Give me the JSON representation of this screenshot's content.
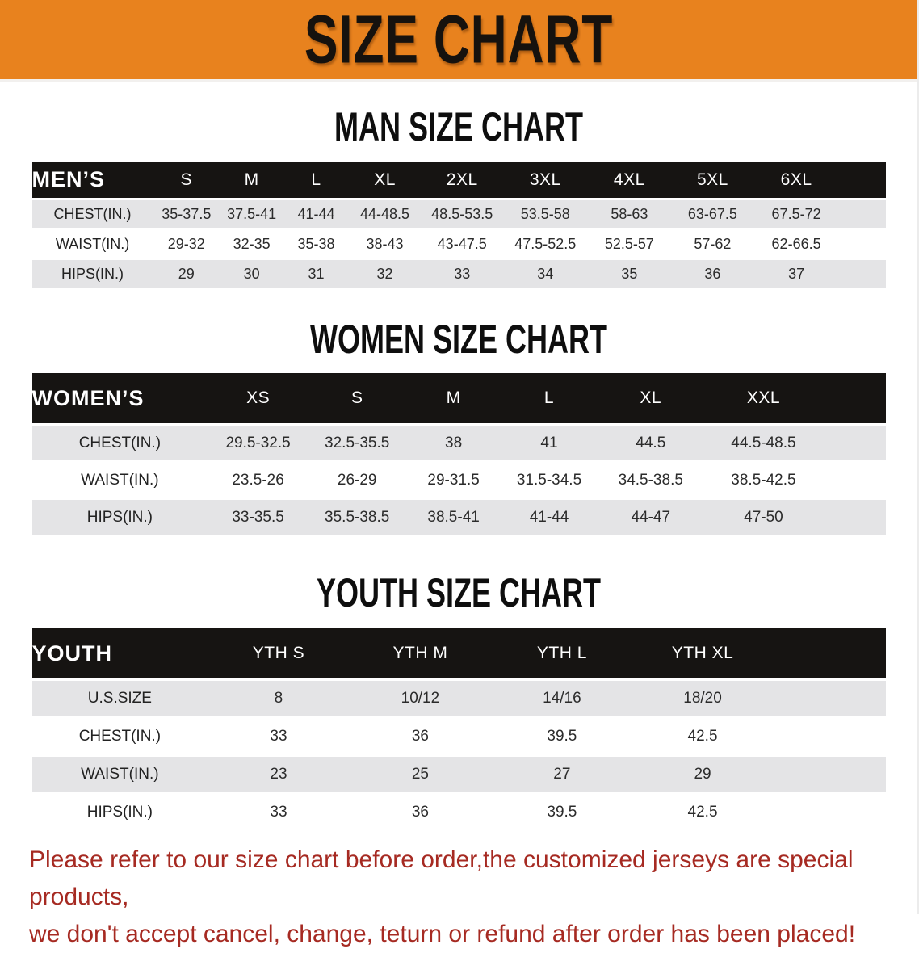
{
  "banner": {
    "title": "SIZE CHART",
    "bg_color": "#e8821e"
  },
  "sections": [
    {
      "name": "men",
      "heading": "MAN SIZE CHART",
      "table": {
        "label": "MEN’S",
        "columns": [
          "S",
          "M",
          "L",
          "XL",
          "2XL",
          "3XL",
          "4XL",
          "5XL",
          "6XL"
        ],
        "rows": [
          {
            "label": "CHEST(IN.)",
            "values": [
              "35-37.5",
              "37.5-41",
              "41-44",
              "44-48.5",
              "48.5-53.5",
              "53.5-58",
              "58-63",
              "63-67.5",
              "67.5-72"
            ]
          },
          {
            "label": "WAIST(IN.)",
            "values": [
              "29-32",
              "32-35",
              "35-38",
              "38-43",
              "43-47.5",
              "47.5-52.5",
              "52.5-57",
              "57-62",
              "62-66.5"
            ]
          },
          {
            "label": "HIPS(IN.)",
            "values": [
              "29",
              "30",
              "31",
              "32",
              "33",
              "34",
              "35",
              "36",
              "37"
            ]
          }
        ]
      }
    },
    {
      "name": "women",
      "heading": "WOMEN SIZE CHART",
      "table": {
        "label": "WOMEN’S",
        "columns": [
          "XS",
          "S",
          "M",
          "L",
          "XL",
          "XXL"
        ],
        "rows": [
          {
            "label": "CHEST(IN.)",
            "values": [
              "29.5-32.5",
              "32.5-35.5",
              "38",
              "41",
              "44.5",
              "44.5-48.5"
            ]
          },
          {
            "label": "WAIST(IN.)",
            "values": [
              "23.5-26",
              "26-29",
              "29-31.5",
              "31.5-34.5",
              "34.5-38.5",
              "38.5-42.5"
            ]
          },
          {
            "label": "HIPS(IN.)",
            "values": [
              "33-35.5",
              "35.5-38.5",
              "38.5-41",
              "41-44",
              "44-47",
              "47-50"
            ]
          }
        ]
      }
    },
    {
      "name": "youth",
      "heading": "YOUTH SIZE CHART",
      "table": {
        "label": "YOUTH",
        "columns": [
          "YTH S",
          "YTH M",
          "YTH L",
          "YTH XL"
        ],
        "rows": [
          {
            "label": "U.S.SIZE",
            "values": [
              "8",
              "10/12",
              "14/16",
              "18/20"
            ]
          },
          {
            "label": "CHEST(IN.)",
            "values": [
              "33",
              "36",
              "39.5",
              "42.5"
            ]
          },
          {
            "label": "WAIST(IN.)",
            "values": [
              "23",
              "25",
              "27",
              "29"
            ]
          },
          {
            "label": "HIPS(IN.)",
            "values": [
              "33",
              "36",
              "39.5",
              "42.5"
            ]
          }
        ]
      }
    }
  ],
  "footer": {
    "line1": "Please refer to our size chart before order,the customized jerseys are special products,",
    "line2": "we don't accept cancel, change, teturn or refund after order has been placed!",
    "color": "#a62a22"
  },
  "colors": {
    "banner_bg": "#e8821e",
    "header_bar": "#161412",
    "stripe": "#e4e4e6"
  }
}
